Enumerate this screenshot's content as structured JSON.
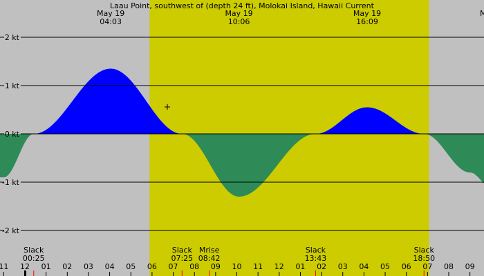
{
  "chart_data": {
    "type": "area",
    "title": "Laau Point, southwest of (depth 24 ft), Molokai Island, Hawaii Current",
    "xlabel": "",
    "ylabel": "",
    "y_unit": "kt",
    "ylim": [
      -2.5,
      2.0
    ],
    "y_ticks": [
      {
        "value": 2,
        "label": "2 kt"
      },
      {
        "value": 1,
        "label": "1 kt"
      },
      {
        "value": 0,
        "label": "0 kt"
      },
      {
        "value": -1,
        "label": "-1 kt"
      },
      {
        "value": -2,
        "label": "-2 kt"
      }
    ],
    "x_hours_range": [
      -1.0,
      33.0
    ],
    "hour_labels": [
      "11",
      "12",
      "01",
      "02",
      "03",
      "04",
      "05",
      "06",
      "07",
      "08",
      "09",
      "10",
      "11",
      "12",
      "01",
      "02",
      "03",
      "04",
      "05",
      "06",
      "07",
      "08",
      "09"
    ],
    "daylight": {
      "start": "05:53",
      "end": "19:04"
    },
    "top_labels": [
      {
        "date": "May 19",
        "time": "04:03"
      },
      {
        "date": "May 19",
        "time": "10:06"
      },
      {
        "date": "May 19",
        "time": "16:09"
      },
      {
        "date": "M",
        "time": ""
      }
    ],
    "bottom_events": [
      {
        "label": "Slack",
        "time": "00:25"
      },
      {
        "label": "Slack",
        "time": "07:25"
      },
      {
        "label": "Mrise",
        "time": "08:42"
      },
      {
        "label": "Slack",
        "time": "13:43"
      },
      {
        "label": "Slack",
        "time": "18:50"
      }
    ],
    "series": [
      {
        "x": [
          "-01:00",
          "00:25",
          "04:03",
          "07:25",
          "10:06",
          "13:43",
          "16:09",
          "18:50",
          "21:00",
          "22:00"
        ],
        "values": [
          -0.9,
          0.0,
          1.35,
          0.0,
          -1.3,
          0.0,
          0.55,
          0.0,
          -0.8,
          -1.1
        ]
      }
    ],
    "colors": {
      "flood": "#0000ff",
      "ebb": "#2e8b57",
      "night": "#c0c0c0",
      "day": "#cccc00",
      "grid": "#000000",
      "event_tick": "#ff0000"
    },
    "grid": true
  }
}
